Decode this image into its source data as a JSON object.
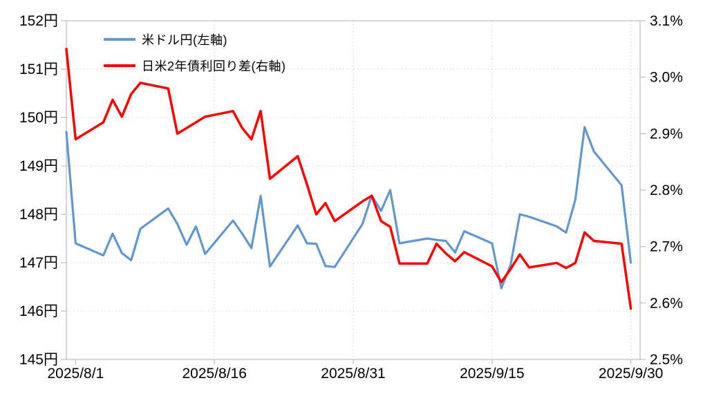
{
  "chart": {
    "background": "#ffffff",
    "text_color": "#000000",
    "grid_color": "#d9d9d9",
    "border_color": "#bfbfbf"
  },
  "chart_data": {
    "type": "line",
    "title": "",
    "legend_position": "top-left-inside",
    "grid": true,
    "x": {
      "tick_labels": [
        {
          "label": "2025/8/1",
          "date": "8/1",
          "gridline": false
        },
        {
          "label": "2025/8/16",
          "date": "8/16",
          "gridline": true
        },
        {
          "label": "2025/8/31",
          "date": "8/31",
          "gridline": true
        },
        {
          "label": "2025/9/15",
          "date": "9/15",
          "gridline": true
        },
        {
          "label": "2025/9/30",
          "date": "9/30",
          "gridline": true
        }
      ]
    },
    "y_left": {
      "unit": "円",
      "min": 145,
      "max": 152,
      "tick_values": [
        152,
        151,
        150,
        149,
        148,
        147,
        146,
        145
      ],
      "tick_labels": [
        "152円",
        "151円",
        "150円",
        "149円",
        "148円",
        "147円",
        "146円",
        "145円"
      ]
    },
    "y_right": {
      "unit": "%",
      "min": 2.5,
      "max": 3.1,
      "tick_values": [
        3.1,
        3.0,
        2.9,
        2.8,
        2.7,
        2.6,
        2.5
      ],
      "tick_labels": [
        "3.1%",
        "3.0%",
        "2.9%",
        "2.8%",
        "2.7%",
        "2.6%",
        "2.5%"
      ]
    },
    "series": [
      {
        "name": "米ドル円(左軸)",
        "axis": "left",
        "color": "#6197d1",
        "dates": [
          "7/31",
          "8/1",
          "8/4",
          "8/5",
          "8/6",
          "8/7",
          "8/8",
          "8/11",
          "8/12",
          "8/13",
          "8/14",
          "8/15",
          "8/18",
          "8/19",
          "8/20",
          "8/21",
          "8/22",
          "8/25",
          "8/26",
          "8/27",
          "8/28",
          "8/29",
          "9/1",
          "9/2",
          "9/3",
          "9/4",
          "9/5",
          "9/8",
          "9/9",
          "9/10",
          "9/11",
          "9/12",
          "9/15",
          "9/16",
          "9/17",
          "9/18",
          "9/19",
          "9/22",
          "9/23",
          "9/24",
          "9/25",
          "9/26",
          "9/29",
          "9/30"
        ],
        "values": [
          149.7,
          147.4,
          147.15,
          147.6,
          147.2,
          147.05,
          147.7,
          148.12,
          147.8,
          147.37,
          147.75,
          147.18,
          147.87,
          147.6,
          147.3,
          148.38,
          146.92,
          147.77,
          147.4,
          147.39,
          146.93,
          146.91,
          147.8,
          148.39,
          148.07,
          148.5,
          147.4,
          147.5,
          147.47,
          147.45,
          147.21,
          147.65,
          147.4,
          146.47,
          146.95,
          148.0,
          147.95,
          147.75,
          147.62,
          148.3,
          149.8,
          149.3,
          148.6,
          147.0
        ]
      },
      {
        "name": "日米2年債利回り差(右軸)",
        "axis": "right",
        "color": "#ff0000",
        "dates": [
          "7/31",
          "8/1",
          "8/4",
          "8/5",
          "8/6",
          "8/7",
          "8/8",
          "8/11",
          "8/12",
          "8/13",
          "8/14",
          "8/15",
          "8/18",
          "8/19",
          "8/20",
          "8/21",
          "8/22",
          "8/25",
          "8/26",
          "8/27",
          "8/28",
          "8/29",
          "9/1",
          "9/2",
          "9/3",
          "9/4",
          "9/5",
          "9/8",
          "9/9",
          "9/10",
          "9/11",
          "9/12",
          "9/15",
          "9/16",
          "9/17",
          "9/18",
          "9/19",
          "9/22",
          "9/23",
          "9/24",
          "9/25",
          "9/26",
          "9/29",
          "9/30"
        ],
        "values": [
          3.05,
          2.89,
          2.92,
          2.96,
          2.93,
          2.97,
          2.99,
          2.98,
          2.9,
          2.91,
          2.92,
          2.93,
          2.94,
          2.91,
          2.89,
          2.94,
          2.82,
          2.86,
          2.81,
          2.757,
          2.777,
          2.745,
          2.78,
          2.79,
          2.745,
          2.735,
          2.67,
          2.67,
          2.705,
          2.688,
          2.674,
          2.69,
          2.665,
          2.637,
          2.66,
          2.686,
          2.663,
          2.671,
          2.662,
          2.671,
          2.725,
          2.71,
          2.705,
          2.59
        ]
      }
    ]
  }
}
